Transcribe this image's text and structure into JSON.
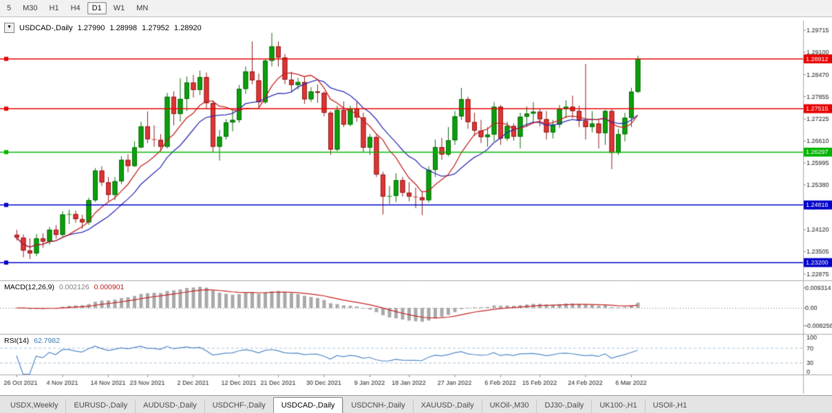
{
  "toolbar": {
    "buttons": [
      {
        "label": "5",
        "active": false
      },
      {
        "label": "M30",
        "active": false
      },
      {
        "label": "H1",
        "active": false
      },
      {
        "label": "H4",
        "active": false
      },
      {
        "label": "D1",
        "active": true
      },
      {
        "label": "W1",
        "active": false
      },
      {
        "label": "MN",
        "active": false
      }
    ]
  },
  "chart_header": {
    "dropdown_icon": "▼",
    "symbol": "USDCAD-,Daily",
    "open": "1.27990",
    "high": "1.28998",
    "low": "1.27952",
    "close": "1.28920"
  },
  "price_axis": {
    "ticks": [
      "1.29715",
      "1.29100",
      "1.28470",
      "1.27855",
      "1.27225",
      "1.26610",
      "1.25995",
      "1.25380",
      "1.24750",
      "1.24120",
      "1.23505",
      "1.22875"
    ]
  },
  "levels": [
    {
      "price": 1.28912,
      "label": "1.28912",
      "color": "#e60000"
    },
    {
      "price": 1.27515,
      "label": "1.27515",
      "color": "#e60000"
    },
    {
      "price": 1.26297,
      "label": "1.26297",
      "color": "#00b400"
    },
    {
      "price": 1.24816,
      "label": "1.24816",
      "color": "#0000c8"
    },
    {
      "price": 1.232,
      "label": "1.23200",
      "color": "#0000c8"
    }
  ],
  "date_axis": {
    "ticks": [
      {
        "label": "26 Oct 2021",
        "index": 0
      },
      {
        "label": "4 Nov 2021",
        "index": 7
      },
      {
        "label": "14 Nov 2021",
        "index": 14
      },
      {
        "label": "23 Nov 2021",
        "index": 20
      },
      {
        "label": "2 Dec 2021",
        "index": 27
      },
      {
        "label": "12 Dec 2021",
        "index": 34
      },
      {
        "label": "21 Dec 2021",
        "index": 40
      },
      {
        "label": "30 Dec 2021",
        "index": 47
      },
      {
        "label": "9 Jan 2022",
        "index": 54
      },
      {
        "label": "18 Jan 2022",
        "index": 60
      },
      {
        "label": "27 Jan 2022",
        "index": 67
      },
      {
        "label": "6 Feb 2022",
        "index": 74
      },
      {
        "label": "15 Feb 2022",
        "index": 80
      },
      {
        "label": "24 Feb 2022",
        "index": 87
      },
      {
        "label": "6 Mar 2022",
        "index": 94
      }
    ]
  },
  "chart_data": {
    "type": "candlestick",
    "symbol": "USDCAD",
    "timeframe": "Daily",
    "y_range": [
      1.22875,
      1.29715
    ],
    "colors": {
      "up": "#0ba00b",
      "up_edge": "#076807",
      "down": "#e03535",
      "down_edge": "#8f1717",
      "ma_fast": "#c41e1e",
      "ma_slow": "#2a2ab4"
    },
    "ma_fast_period": 8,
    "ma_slow_period": 13,
    "ohlc": [
      [
        1.2398,
        1.2412,
        1.2382,
        1.239
      ],
      [
        1.239,
        1.2399,
        1.2335,
        1.2354
      ],
      [
        1.2354,
        1.2388,
        1.233,
        1.2346
      ],
      [
        1.2346,
        1.24,
        1.2338,
        1.2388
      ],
      [
        1.2388,
        1.2402,
        1.2362,
        1.2379
      ],
      [
        1.2379,
        1.242,
        1.237,
        1.2412
      ],
      [
        1.2412,
        1.2425,
        1.2387,
        1.2398
      ],
      [
        1.2398,
        1.2464,
        1.2392,
        1.2455
      ],
      [
        1.2455,
        1.2468,
        1.2428,
        1.2456
      ],
      [
        1.2456,
        1.2466,
        1.2432,
        1.2442
      ],
      [
        1.2442,
        1.2454,
        1.2415,
        1.2433
      ],
      [
        1.2433,
        1.2502,
        1.2426,
        1.2495
      ],
      [
        1.2495,
        1.2585,
        1.249,
        1.2578
      ],
      [
        1.2578,
        1.259,
        1.2535,
        1.2545
      ],
      [
        1.2545,
        1.256,
        1.2492,
        1.251
      ],
      [
        1.251,
        1.256,
        1.2495,
        1.2548
      ],
      [
        1.2548,
        1.2618,
        1.254,
        1.2608
      ],
      [
        1.2608,
        1.2624,
        1.2573,
        1.2591
      ],
      [
        1.2591,
        1.266,
        1.2588,
        1.2643
      ],
      [
        1.2643,
        1.2715,
        1.264,
        1.2702
      ],
      [
        1.2702,
        1.2744,
        1.2655,
        1.2666
      ],
      [
        1.2666,
        1.2705,
        1.2645,
        1.2664
      ],
      [
        1.2664,
        1.268,
        1.2632,
        1.2645
      ],
      [
        1.2645,
        1.2796,
        1.264,
        1.2785
      ],
      [
        1.2785,
        1.28,
        1.2705,
        1.2737
      ],
      [
        1.2737,
        1.2837,
        1.2715,
        1.2779
      ],
      [
        1.2779,
        1.2842,
        1.2745,
        1.2825
      ],
      [
        1.2825,
        1.2846,
        1.2783,
        1.2804
      ],
      [
        1.2804,
        1.2858,
        1.279,
        1.284
      ],
      [
        1.284,
        1.2853,
        1.2752,
        1.2767
      ],
      [
        1.2767,
        1.2775,
        1.2628,
        1.2645
      ],
      [
        1.2645,
        1.2692,
        1.2606,
        1.2673
      ],
      [
        1.2673,
        1.2722,
        1.2665,
        1.2713
      ],
      [
        1.2713,
        1.2748,
        1.2688,
        1.272
      ],
      [
        1.272,
        1.2818,
        1.2712,
        1.2807
      ],
      [
        1.2807,
        1.287,
        1.2793,
        1.2856
      ],
      [
        1.2856,
        1.294,
        1.282,
        1.2831
      ],
      [
        1.2831,
        1.285,
        1.2755,
        1.277
      ],
      [
        1.277,
        1.289,
        1.2765,
        1.2886
      ],
      [
        1.2886,
        1.2964,
        1.287,
        1.2926
      ],
      [
        1.2926,
        1.294,
        1.287,
        1.2895
      ],
      [
        1.2895,
        1.2905,
        1.282,
        1.2833
      ],
      [
        1.2833,
        1.2855,
        1.28,
        1.2818
      ],
      [
        1.2818,
        1.2838,
        1.2805,
        1.2826
      ],
      [
        1.2826,
        1.284,
        1.2765,
        1.2778
      ],
      [
        1.2778,
        1.2812,
        1.277,
        1.28
      ],
      [
        1.28,
        1.282,
        1.2768,
        1.2796
      ],
      [
        1.2796,
        1.28,
        1.273,
        1.274
      ],
      [
        1.274,
        1.2745,
        1.2622,
        1.2637
      ],
      [
        1.2637,
        1.276,
        1.2632,
        1.2748
      ],
      [
        1.2748,
        1.2772,
        1.27,
        1.2707
      ],
      [
        1.2707,
        1.276,
        1.2702,
        1.2752
      ],
      [
        1.2752,
        1.277,
        1.2715,
        1.2727
      ],
      [
        1.2727,
        1.274,
        1.263,
        1.2642
      ],
      [
        1.2642,
        1.268,
        1.2622,
        1.2672
      ],
      [
        1.2672,
        1.268,
        1.256,
        1.2567
      ],
      [
        1.2567,
        1.2575,
        1.2455,
        1.2505
      ],
      [
        1.2505,
        1.2535,
        1.2485,
        1.2507
      ],
      [
        1.2507,
        1.257,
        1.249,
        1.2551
      ],
      [
        1.2551,
        1.256,
        1.2505,
        1.2516
      ],
      [
        1.2516,
        1.2545,
        1.2492,
        1.2505
      ],
      [
        1.2505,
        1.253,
        1.2473,
        1.2503
      ],
      [
        1.2503,
        1.252,
        1.2453,
        1.2495
      ],
      [
        1.2495,
        1.259,
        1.2488,
        1.258
      ],
      [
        1.258,
        1.2665,
        1.256,
        1.2644
      ],
      [
        1.2644,
        1.267,
        1.2608,
        1.2623
      ],
      [
        1.2623,
        1.27,
        1.2618,
        1.2663
      ],
      [
        1.2663,
        1.2745,
        1.265,
        1.273
      ],
      [
        1.273,
        1.281,
        1.272,
        1.2778
      ],
      [
        1.2778,
        1.2785,
        1.2695,
        1.2714
      ],
      [
        1.2714,
        1.274,
        1.2675,
        1.269
      ],
      [
        1.269,
        1.272,
        1.2655,
        1.2672
      ],
      [
        1.2672,
        1.27,
        1.2645,
        1.2679
      ],
      [
        1.2679,
        1.277,
        1.266,
        1.2757
      ],
      [
        1.2757,
        1.2762,
        1.265,
        1.2668
      ],
      [
        1.2668,
        1.2715,
        1.2662,
        1.2703
      ],
      [
        1.2703,
        1.271,
        1.2662,
        1.2673
      ],
      [
        1.2673,
        1.274,
        1.264,
        1.2729
      ],
      [
        1.2729,
        1.2758,
        1.27,
        1.2738
      ],
      [
        1.2738,
        1.277,
        1.2712,
        1.2743
      ],
      [
        1.2743,
        1.2752,
        1.2702,
        1.2722
      ],
      [
        1.2722,
        1.2745,
        1.2665,
        1.2685
      ],
      [
        1.2685,
        1.272,
        1.2668,
        1.2707
      ],
      [
        1.2707,
        1.2762,
        1.2697,
        1.2751
      ],
      [
        1.2751,
        1.2775,
        1.2725,
        1.2757
      ],
      [
        1.2757,
        1.2788,
        1.2725,
        1.2745
      ],
      [
        1.2745,
        1.276,
        1.27,
        1.2718
      ],
      [
        1.2718,
        1.2877,
        1.2665,
        1.27
      ],
      [
        1.27,
        1.2745,
        1.2685,
        1.271
      ],
      [
        1.271,
        1.2722,
        1.264,
        1.2683
      ],
      [
        1.2683,
        1.2748,
        1.265,
        1.2745
      ],
      [
        1.2745,
        1.275,
        1.2582,
        1.2628
      ],
      [
        1.2628,
        1.2695,
        1.2622,
        1.268
      ],
      [
        1.268,
        1.274,
        1.266,
        1.2726
      ],
      [
        1.2726,
        1.281,
        1.27,
        1.2799
      ],
      [
        1.2799,
        1.28998,
        1.27952,
        1.2892
      ]
    ]
  },
  "macd": {
    "name": "MACD(12,26,9)",
    "value_main": "0.002126",
    "value_signal": "0.000901",
    "fast": 12,
    "slow": 26,
    "signal": 9,
    "axis_labels": [
      "0.009314",
      "0.00",
      "-0.008256"
    ],
    "histogram_color": "#a9a9a9",
    "signal_color": "#c41e1e"
  },
  "rsi": {
    "name": "RSI(14)",
    "value": "62.7982",
    "period": 14,
    "levels": [
      70,
      30
    ],
    "axis_labels": [
      "100",
      "70",
      "30",
      "0"
    ],
    "color": "#4e86c8",
    "level_color": "#a9c0d8"
  },
  "tabs": {
    "items": [
      {
        "label": "USDX,Weekly",
        "active": false
      },
      {
        "label": "EURUSD-,Daily",
        "active": false
      },
      {
        "label": "AUDUSD-,Daily",
        "active": false
      },
      {
        "label": "USDCHF-,Daily",
        "active": false
      },
      {
        "label": "USDCAD-,Daily",
        "active": true
      },
      {
        "label": "USDCNH-,Daily",
        "active": false
      },
      {
        "label": "XAUUSD-,Daily",
        "active": false
      },
      {
        "label": "UKOil-,M30",
        "active": false
      },
      {
        "label": "DJ30-,Daily",
        "active": false
      },
      {
        "label": "UK100-,H1",
        "active": false
      },
      {
        "label": "USOil-,H1",
        "active": false
      }
    ]
  }
}
